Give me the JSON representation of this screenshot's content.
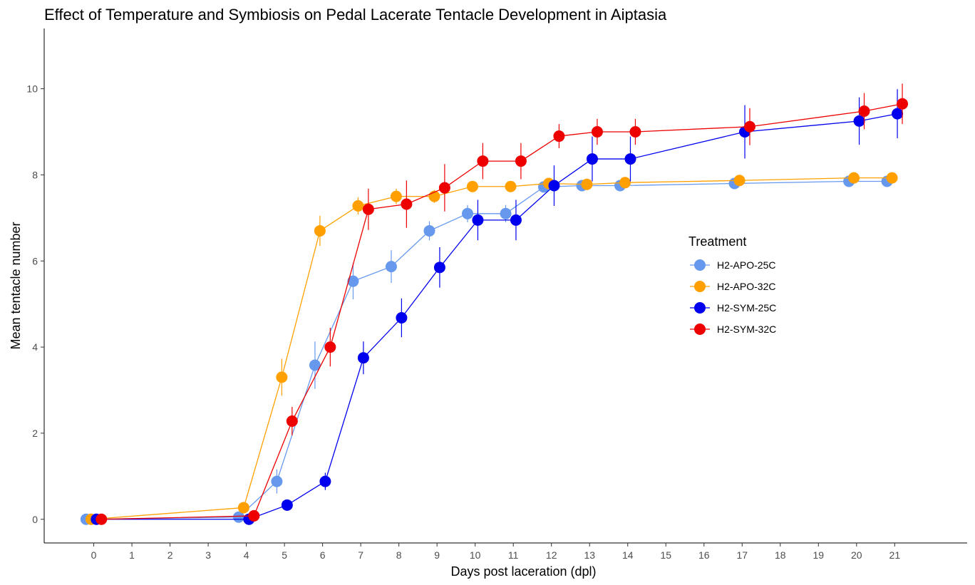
{
  "chart_data": {
    "type": "line",
    "title": "Effect of Temperature and Symbiosis on Pedal Lacerate Tentacle Development in Aiptasia",
    "xlabel": "Days post laceration (dpl)",
    "ylabel": "Mean tentacle number",
    "x_ticks": [
      0,
      1,
      2,
      3,
      4,
      5,
      6,
      7,
      8,
      9,
      10,
      11,
      12,
      13,
      14,
      15,
      16,
      17,
      18,
      19,
      20,
      21
    ],
    "y_ticks": [
      0,
      2,
      4,
      6,
      8,
      10
    ],
    "xlim": [
      -1.3,
      22.9
    ],
    "ylim": [
      -0.55,
      11.4
    ],
    "grid": false,
    "legend": {
      "title": "Treatment",
      "position": "right"
    },
    "series": [
      {
        "name": "H2-APO-25C",
        "color": "#6699EE",
        "dodge": -0.2,
        "x": [
          0,
          4,
          5,
          6,
          7,
          8,
          9,
          10,
          11,
          12,
          13,
          14,
          17,
          20,
          21
        ],
        "y": [
          0,
          0.05,
          0.88,
          3.58,
          5.53,
          5.87,
          6.7,
          7.1,
          7.1,
          7.72,
          7.75,
          7.75,
          7.8,
          7.85,
          7.85
        ],
        "err": [
          0,
          0.05,
          0.28,
          0.55,
          0.42,
          0.38,
          0.22,
          0.2,
          0.2,
          0.12,
          0.08,
          0.08,
          0.08,
          0.08,
          0.08
        ]
      },
      {
        "name": "H2-APO-32C",
        "color": "#FFA000",
        "dodge": -0.07,
        "x": [
          0,
          4,
          5,
          6,
          7,
          8,
          9,
          10,
          11,
          12,
          13,
          14,
          17,
          20,
          21
        ],
        "y": [
          0,
          0.27,
          3.3,
          6.7,
          7.28,
          7.5,
          7.5,
          7.73,
          7.73,
          7.8,
          7.78,
          7.82,
          7.87,
          7.93,
          7.93
        ],
        "err": [
          0,
          0.05,
          0.43,
          0.35,
          0.2,
          0.18,
          0.15,
          0.1,
          0.1,
          0.08,
          0.08,
          0.08,
          0.08,
          0.05,
          0.05
        ]
      },
      {
        "name": "H2-SYM-25C",
        "color": "#0000EE",
        "dodge": 0.07,
        "x": [
          0,
          4,
          5,
          6,
          7,
          8,
          9,
          10,
          11,
          12,
          13,
          14,
          17,
          20,
          21
        ],
        "y": [
          0,
          0,
          0.33,
          0.88,
          3.75,
          4.68,
          5.85,
          6.95,
          6.95,
          7.75,
          8.37,
          8.37,
          9.0,
          9.25,
          9.42
        ],
        "err": [
          0,
          0,
          0.1,
          0.2,
          0.38,
          0.45,
          0.47,
          0.47,
          0.47,
          0.47,
          0.52,
          0.52,
          0.62,
          0.55,
          0.57
        ]
      },
      {
        "name": "H2-SYM-32C",
        "color": "#EE0000",
        "dodge": 0.2,
        "x": [
          0,
          4,
          5,
          6,
          7,
          8,
          9,
          10,
          11,
          12,
          13,
          14,
          17,
          20,
          21
        ],
        "y": [
          0,
          0.08,
          2.28,
          4.0,
          7.2,
          7.32,
          7.7,
          8.32,
          8.32,
          8.9,
          9.0,
          9.0,
          9.12,
          9.48,
          9.65
        ],
        "err": [
          0,
          0.05,
          0.33,
          0.45,
          0.48,
          0.55,
          0.55,
          0.42,
          0.42,
          0.28,
          0.3,
          0.3,
          0.43,
          0.42,
          0.47
        ]
      }
    ]
  }
}
